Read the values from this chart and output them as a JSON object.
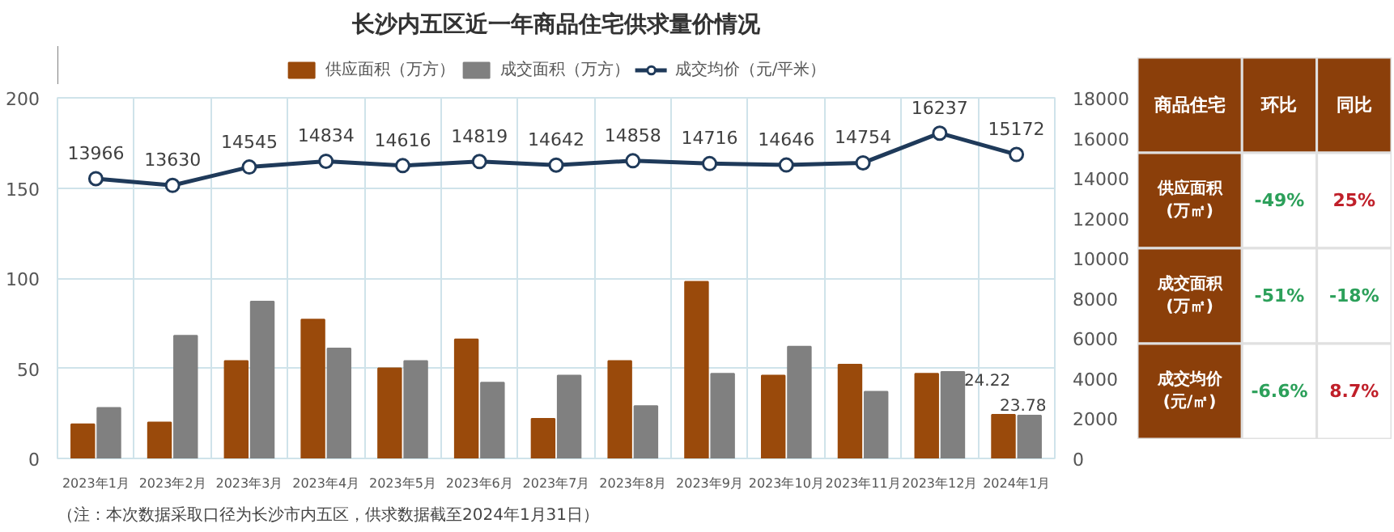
{
  "chart_data": [
    {
      "type": "bar",
      "title": "长沙内五区近一年商品住宅供求量价情况",
      "categories": [
        "2023年1月",
        "2023年2月",
        "2023年3月",
        "2023年4月",
        "2023年5月",
        "2023年6月",
        "2023年7月",
        "2023年8月",
        "2023年9月",
        "2023年10月",
        "2023年11月",
        "2023年12月",
        "2024年1月"
      ],
      "series": [
        {
          "name": "供应面积（万方）",
          "color": "#9a4a0b",
          "values": [
            19,
            20,
            54,
            77,
            50,
            66,
            22,
            54,
            98,
            46,
            52,
            47,
            24.22
          ],
          "value_labels": [
            null,
            null,
            null,
            null,
            null,
            null,
            null,
            null,
            null,
            null,
            null,
            null,
            "24.22"
          ]
        },
        {
          "name": "成交面积（万方）",
          "color": "#808080",
          "values": [
            28,
            68,
            87,
            61,
            54,
            42,
            46,
            29,
            47,
            62,
            37,
            48,
            23.78
          ],
          "value_labels": [
            null,
            null,
            null,
            null,
            null,
            null,
            null,
            null,
            null,
            null,
            null,
            null,
            "23.78"
          ]
        },
        {
          "name": "成交均价（元/平米）",
          "type": "line",
          "axis": "y2",
          "marker": "circle",
          "color": "#1f3a5a",
          "values": [
            13966,
            13630,
            14545,
            14834,
            14616,
            14819,
            14642,
            14858,
            14716,
            14646,
            14754,
            16237,
            15172
          ],
          "value_labels": [
            "13966",
            "13630",
            "14545",
            "14834",
            "14616",
            "14819",
            "14642",
            "14858",
            "14716",
            "14646",
            "14754",
            "16237",
            "15172"
          ]
        }
      ],
      "ylim": [
        0,
        200
      ],
      "yticks": [
        0,
        50,
        100,
        150,
        200
      ],
      "y2lim": [
        0,
        18000
      ],
      "y2ticks": [
        0,
        2000,
        4000,
        6000,
        8000,
        10000,
        12000,
        14000,
        16000,
        18000
      ],
      "grid": true,
      "legend": "top",
      "annotations": [
        "（注：本次数据采取口径为长沙市内五区，供求数据截至2024年1月31日）"
      ]
    },
    {
      "type": "other",
      "title": "商品住宅",
      "categories": [
        "环比",
        "同比"
      ],
      "y_categories": [
        "供应面积\n(万㎡)",
        "成交面积\n(万㎡)",
        "成交均价\n(元/㎡)"
      ],
      "cell_labels": [
        [
          "-49%",
          "25%"
        ],
        [
          "-51%",
          "-18%"
        ],
        [
          "-6.6%",
          "8.7%"
        ]
      ],
      "colors": [
        [
          "#2ca05a",
          "#c0202a"
        ],
        [
          "#2ca05a",
          "#2ca05a"
        ],
        [
          "#2ca05a",
          "#c0202a"
        ]
      ]
    }
  ]
}
